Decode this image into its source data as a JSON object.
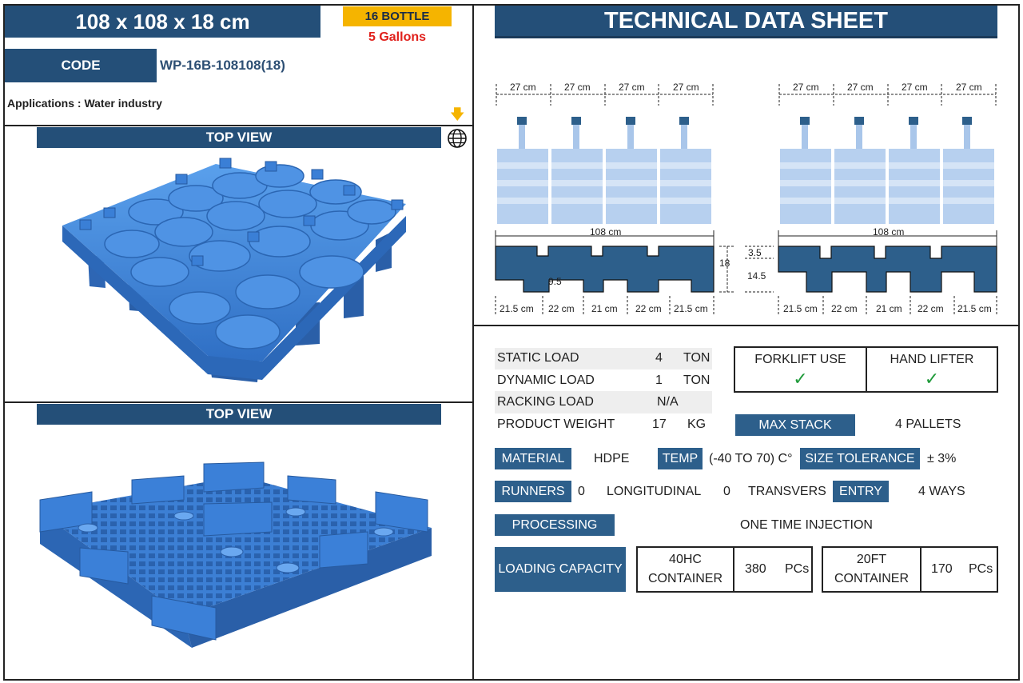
{
  "header": {
    "size_title": "108 x 108 x 18 cm",
    "bottle_badge": "16 BOTTLE",
    "gallons": "5 Gallons",
    "code_label": "CODE",
    "code_value": "WP-16B-108108(18)",
    "applications": "Applications : Water industry"
  },
  "views": {
    "top_view_1": "TOP VIEW",
    "top_view_2": "TOP VIEW"
  },
  "sheet_title": "TECHNICAL DATA SHEET",
  "dimensions": {
    "bottle_widths": [
      "27 cm",
      "27 cm",
      "27 cm",
      "27 cm"
    ],
    "total_width": "108 cm",
    "height_total": "18",
    "deck": "3.5",
    "block": "14.5",
    "opening": "9.5",
    "segments": [
      "21.5 cm",
      "22 cm",
      "21 cm",
      "22 cm",
      "21.5 cm"
    ]
  },
  "loads": {
    "static_label": "STATIC LOAD",
    "static_value": "4",
    "static_unit": "TON",
    "dynamic_label": "DYNAMIC LOAD",
    "dynamic_value": "1",
    "dynamic_unit": "TON",
    "racking_label": "RACKING LOAD",
    "racking_value": "N/A",
    "weight_label": "PRODUCT WEIGHT",
    "weight_value": "17",
    "weight_unit": "KG"
  },
  "handling": {
    "forklift": "FORKLIFT USE",
    "hand_lifter": "HAND LIFTER",
    "check_mark": "✓"
  },
  "specs": {
    "max_stack_label": "MAX STACK",
    "max_stack_value": "4 PALLETS",
    "material_label": "MATERIAL",
    "material_value": "HDPE",
    "temp_label": "TEMP",
    "temp_value": "(-40 TO 70) C°",
    "tolerance_label": "SIZE TOLERANCE",
    "tolerance_value": "± 3%",
    "runners_label": "RUNNERS",
    "runners_long_value": "0",
    "runners_long_label": "LONGITUDINAL",
    "runners_trans_value": "0",
    "runners_trans_label": "TRANSVERS",
    "entry_label": "ENTRY",
    "entry_value": "4 WAYS",
    "processing_label": "PROCESSING",
    "processing_value": "ONE TIME INJECTION"
  },
  "loading": {
    "label": "LOADING CAPACITY",
    "c1_name_1": "40HC",
    "c1_name_2": "CONTAINER",
    "c1_qty": "380",
    "c1_unit": "PCs",
    "c2_name_1": "20FT",
    "c2_name_2": "CONTAINER",
    "c2_qty": "170",
    "c2_unit": "PCs"
  },
  "colors": {
    "brand_blue": "#2d5f8b",
    "badge_yellow": "#f5b400",
    "gallons_red": "#e0201b",
    "pallet_blue": "#3d7fd0",
    "bottle_light": "#a9c6ea",
    "check_green": "#1f9a3a"
  }
}
